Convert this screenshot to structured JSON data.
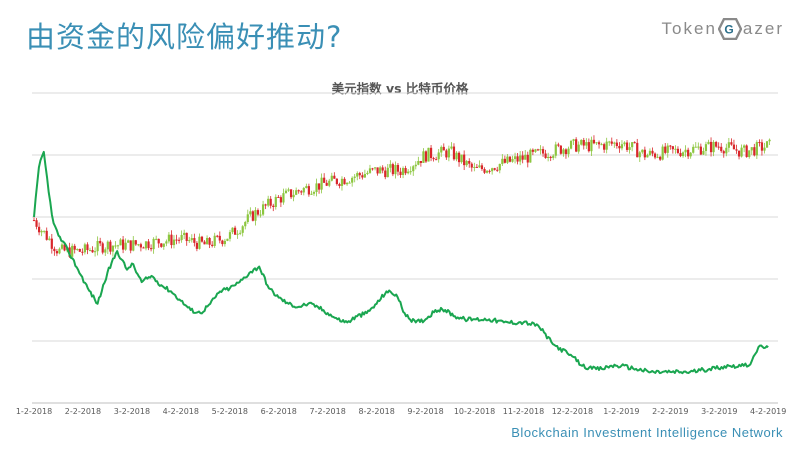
{
  "page": {
    "headline": "由资金的风险偏好推动?",
    "brand": {
      "prefix": "Token",
      "mark_letter": "G",
      "suffix": "azer"
    },
    "tagline": "Blockchain Investment Intelligence Network"
  },
  "colors": {
    "headline": "#3a8fb5",
    "candle_up": "#8cc63f",
    "candle_down": "#d9262b",
    "btc_line": "#1aa650",
    "grid": "#d9d9d9"
  },
  "chart_data": {
    "type": "line",
    "title": "美元指数 vs 比特币价格",
    "xlabel": "",
    "ylabel": "",
    "x_tick_labels": [
      "1-2-2018",
      "2-2-2018",
      "3-2-2018",
      "4-2-2018",
      "5-2-2018",
      "6-2-2018",
      "7-2-2018",
      "8-2-2018",
      "9-2-2018",
      "10-2-2018",
      "11-2-2018",
      "12-2-2018",
      "1-2-2019",
      "2-2-2019",
      "3-2-2019",
      "4-2-2019"
    ],
    "x_range": [
      0,
      15.2
    ],
    "y_range": [
      0,
      5
    ],
    "y_grid_values": [
      1,
      2,
      3,
      4,
      5
    ],
    "grid": true,
    "y_axis_labels_shown": false,
    "legend": "none",
    "series": [
      {
        "kind": "candlestick",
        "x": [
          0,
          0.5,
          1,
          1.5,
          2,
          2.5,
          3,
          3.5,
          4,
          4.5,
          5,
          5.5,
          6,
          6.5,
          7,
          7.5,
          8,
          8.5,
          9,
          9.5,
          10,
          10.5,
          11,
          11.5,
          12,
          12.5,
          13,
          13.5,
          14,
          14.5,
          15
        ],
        "close": [
          2.95,
          2.45,
          2.45,
          2.55,
          2.55,
          2.6,
          2.65,
          2.55,
          2.7,
          3.05,
          3.3,
          3.45,
          3.55,
          3.65,
          3.75,
          3.75,
          4.0,
          4.05,
          3.75,
          3.85,
          3.95,
          4.05,
          4.15,
          4.15,
          4.2,
          4.0,
          4.05,
          4.1,
          4.15,
          4.05,
          4.15
        ]
      },
      {
        "kind": "line",
        "x": [
          0,
          0.1,
          0.2,
          0.3,
          0.4,
          0.5,
          0.7,
          0.9,
          1.1,
          1.3,
          1.5,
          1.7,
          1.9,
          2.0,
          2.2,
          2.4,
          2.6,
          2.8,
          3.0,
          3.2,
          3.4,
          3.6,
          3.8,
          4.0,
          4.2,
          4.4,
          4.6,
          4.8,
          5.0,
          5.2,
          5.4,
          5.6,
          5.8,
          6.0,
          6.2,
          6.4,
          6.6,
          6.8,
          7.0,
          7.2,
          7.4,
          7.6,
          7.8,
          8.0,
          8.2,
          8.4,
          8.6,
          8.8,
          9.0,
          9.3,
          9.6,
          10.0,
          10.3,
          10.6,
          10.9,
          11.0,
          11.2,
          11.4,
          11.6,
          11.8,
          12.0,
          12.3,
          12.6,
          13.0,
          13.4,
          13.8,
          14.2,
          14.5,
          14.6,
          14.7,
          14.8,
          15.0
        ],
        "y": [
          3.0,
          3.8,
          4.05,
          3.4,
          2.9,
          2.7,
          2.45,
          2.15,
          1.85,
          1.6,
          2.1,
          2.45,
          2.15,
          2.25,
          1.95,
          2.05,
          1.9,
          1.8,
          1.65,
          1.5,
          1.45,
          1.6,
          1.8,
          1.85,
          1.95,
          2.1,
          2.2,
          1.85,
          1.7,
          1.6,
          1.55,
          1.6,
          1.55,
          1.45,
          1.35,
          1.3,
          1.4,
          1.45,
          1.6,
          1.8,
          1.75,
          1.4,
          1.3,
          1.35,
          1.5,
          1.5,
          1.4,
          1.35,
          1.35,
          1.35,
          1.3,
          1.3,
          1.25,
          0.95,
          0.8,
          0.75,
          0.6,
          0.55,
          0.55,
          0.6,
          0.6,
          0.55,
          0.5,
          0.5,
          0.5,
          0.55,
          0.6,
          0.6,
          0.6,
          0.75,
          0.9,
          0.9
        ]
      }
    ]
  }
}
